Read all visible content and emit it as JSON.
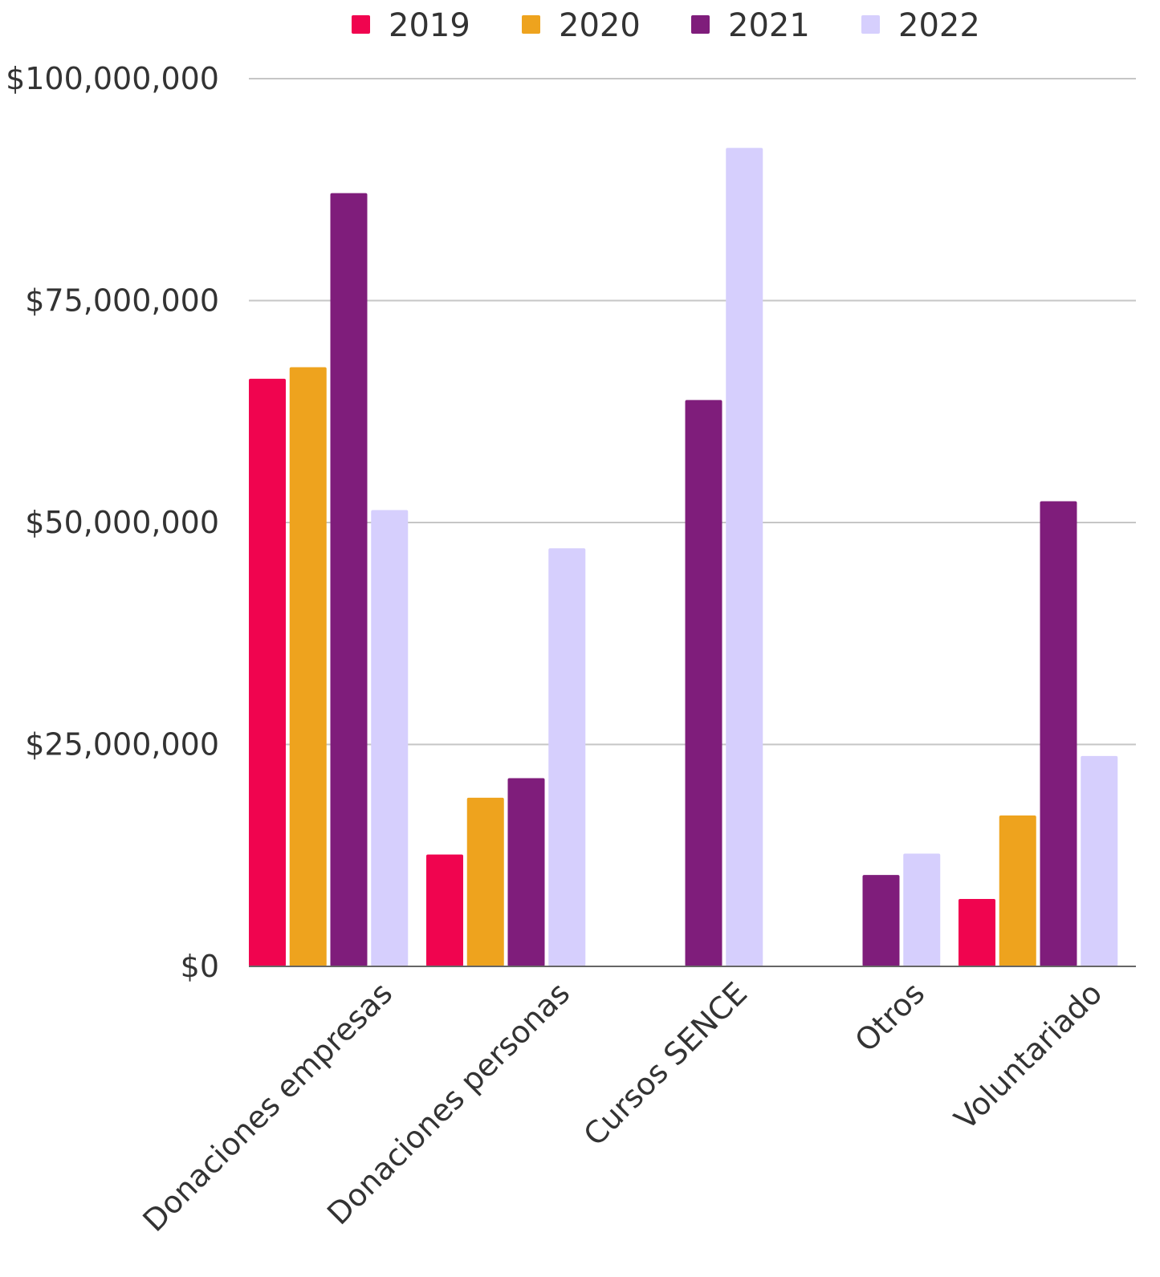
{
  "chart_data": {
    "type": "bar",
    "title": "",
    "xlabel": "",
    "ylabel": "",
    "ylim": [
      0,
      100000000
    ],
    "grid": true,
    "legend_position": "top",
    "categories": [
      "Donaciones empresas",
      "Donaciones personas",
      "Cursos SENCE",
      "Otros",
      "Voluntariado"
    ],
    "y_ticks": [
      {
        "value": 0,
        "label": "$0"
      },
      {
        "value": 25000000,
        "label": "$25,000,000"
      },
      {
        "value": 50000000,
        "label": "$50,000,000"
      },
      {
        "value": 75000000,
        "label": "$75,000,000"
      },
      {
        "value": 100000000,
        "label": "$100,000,000"
      }
    ],
    "series": [
      {
        "name": "2019",
        "color": "#f0044f",
        "values": [
          66200000,
          12600000,
          0,
          0,
          7600000
        ]
      },
      {
        "name": "2020",
        "color": "#eea31e",
        "values": [
          67500000,
          19000000,
          0,
          0,
          17000000
        ]
      },
      {
        "name": "2021",
        "color": "#7f1d7b",
        "values": [
          87100000,
          21200000,
          63800000,
          10300000,
          52400000
        ]
      },
      {
        "name": "2022",
        "color": "#d6cffd",
        "values": [
          51400000,
          47100000,
          92200000,
          12700000,
          23700000
        ]
      }
    ]
  }
}
